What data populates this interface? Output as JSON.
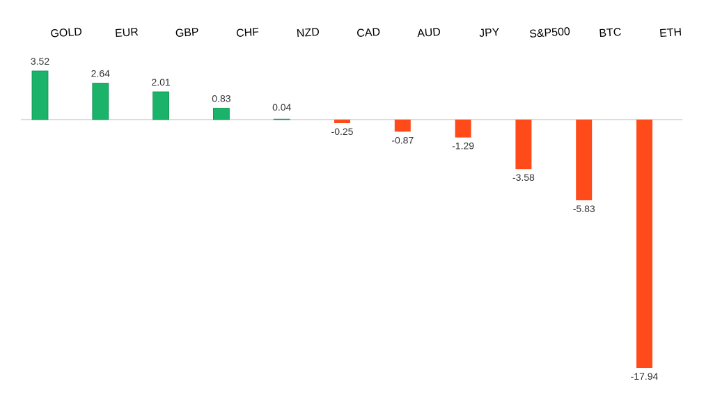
{
  "chart_data": {
    "type": "bar",
    "title": "",
    "xlabel": "",
    "ylabel": "",
    "categories": [
      "GOLD",
      "EUR",
      "GBP",
      "CHF",
      "NZD",
      "CAD",
      "AUD",
      "JPY",
      "S&P500",
      "BTC",
      "ETH"
    ],
    "values": [
      3.52,
      2.64,
      2.01,
      0.83,
      0.04,
      -0.25,
      -0.87,
      -1.29,
      -3.58,
      -5.83,
      -17.94
    ],
    "value_labels": [
      "3.52",
      "2.64",
      "2.01",
      "0.83",
      "0.04",
      "-0.25",
      "-0.87",
      "-1.29",
      "-3.58",
      "-5.83",
      "-17.94"
    ],
    "ylim": [
      -17.94,
      3.52
    ],
    "grid": false,
    "legend": "none",
    "axis_position": "top",
    "colors": {
      "positive": "#1bb26a",
      "negative": "#ff4a1a",
      "zero_line": "#c8c8c8"
    }
  }
}
